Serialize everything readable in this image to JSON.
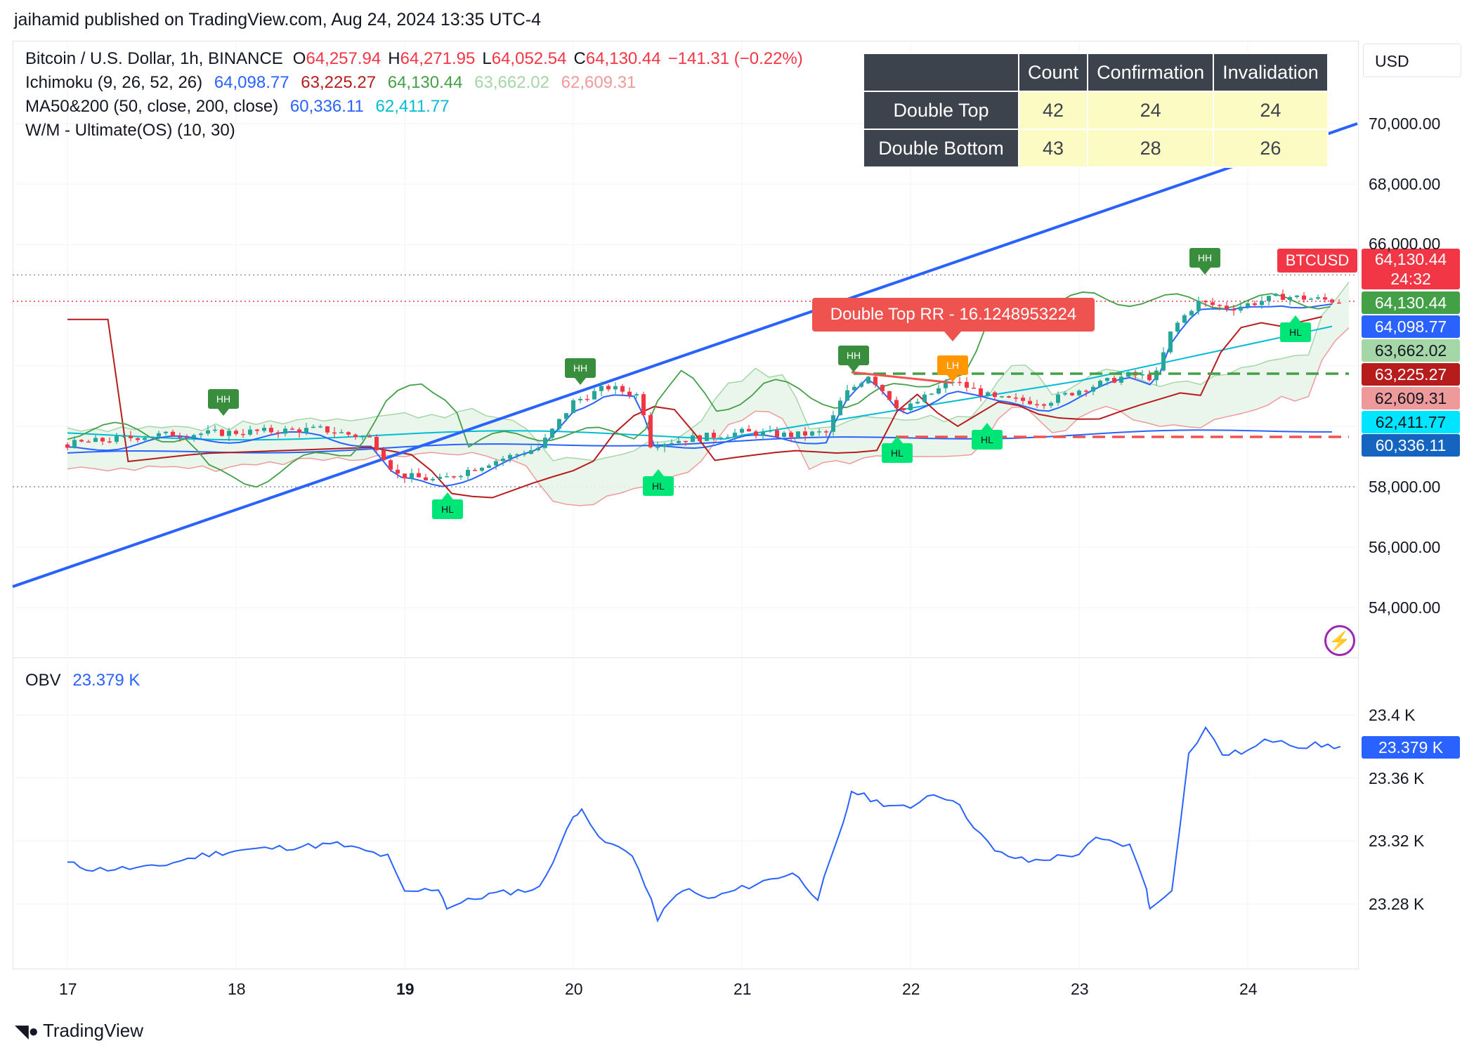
{
  "header": "jaihamid published on TradingView.com, Aug 24, 2024 13:35 UTC-4",
  "currency_button": "USD",
  "legend": {
    "symbol": "Bitcoin / U.S. Dollar, 1h, BINANCE",
    "o_label": "O",
    "o_val": "64,257.94",
    "h_label": "H",
    "h_val": "64,271.95",
    "l_label": "L",
    "l_val": "64,052.54",
    "c_label": "C",
    "c_val": "64,130.44",
    "change": "−141.31 (−0.22%)",
    "ichimoku_label": "Ichimoku (9, 26, 52, 26)",
    "ichimoku_vals": [
      "64,098.77",
      "63,225.27",
      "64,130.44",
      "63,662.02",
      "62,609.31"
    ],
    "ma_label": "MA50&200 (50, close, 200, close)",
    "ma_vals": [
      "60,336.11",
      "62,411.77"
    ],
    "wm_label": "W/M - Ultimate(OS) (10, 30)"
  },
  "stats_table": {
    "headers": [
      "",
      "Count",
      "Confirmation",
      "Invalidation"
    ],
    "rows": [
      {
        "name": "Double Top",
        "count": "42",
        "confirmation": "24",
        "invalidation": "24"
      },
      {
        "name": "Double Bottom",
        "count": "43",
        "confirmation": "28",
        "invalidation": "26"
      }
    ]
  },
  "annotation": "Double Top RR - 16.1248953224",
  "btc_label": "BTCUSD",
  "countdown": "24:32",
  "price_tags": [
    "64,130.44",
    "64,130.44",
    "64,098.77",
    "63,662.02",
    "63,225.27",
    "62,609.31",
    "62,411.77",
    "60,336.11"
  ],
  "colors": {
    "up": "#26a69a",
    "down": "#f23645",
    "kijun": "#b71c1c",
    "tenkan": "#2962ff",
    "chikou": "#43a047",
    "ma50": "#2962ff",
    "ma200": "#00bcd4",
    "trendline": "#2962ff",
    "obv": "#2962ff",
    "label_green": "#00e676",
    "label_dark": "#388e3c"
  },
  "price_ticks": [
    "70,000.00",
    "68,000.00",
    "66,000.00",
    "58,000.00",
    "56,000.00",
    "54,000.00"
  ],
  "obv_label": "OBV",
  "obv_value": "23.379 K",
  "obv_ticks": [
    "23.4 K",
    "23.36 K",
    "23.32 K",
    "23.28 K"
  ],
  "date_ticks": [
    "17",
    "18",
    "19",
    "20",
    "21",
    "22",
    "23",
    "24"
  ],
  "pivot_labels": [
    "HH",
    "HL",
    "HH",
    "HL",
    "HH",
    "HL",
    "LH",
    "HL",
    "HH",
    "HL"
  ],
  "footer_logo": "TradingView",
  "chart_data": {
    "type": "line",
    "title": "Bitcoin / U.S. Dollar, 1h, BINANCE",
    "x": [
      "17",
      "18",
      "19",
      "20",
      "21",
      "22",
      "23",
      "24"
    ],
    "series": [
      {
        "name": "Bitcoin / U.S. Dollar",
        "values": [
          59200,
          59600,
          58400,
          60400,
          59800,
          61600,
          60800,
          64130
        ]
      },
      {
        "name": "OBV",
        "values": [
          23.306,
          23.317,
          23.281,
          23.322,
          23.276,
          23.353,
          23.33,
          23.379
        ]
      }
    ],
    "annotations": [
      "Double Top RR - 16.1248953224"
    ],
    "ylim": [
      53000,
      71500
    ],
    "obv_ylim": [
      23.26,
      23.41
    ],
    "grid": true,
    "legend": "top-left"
  }
}
